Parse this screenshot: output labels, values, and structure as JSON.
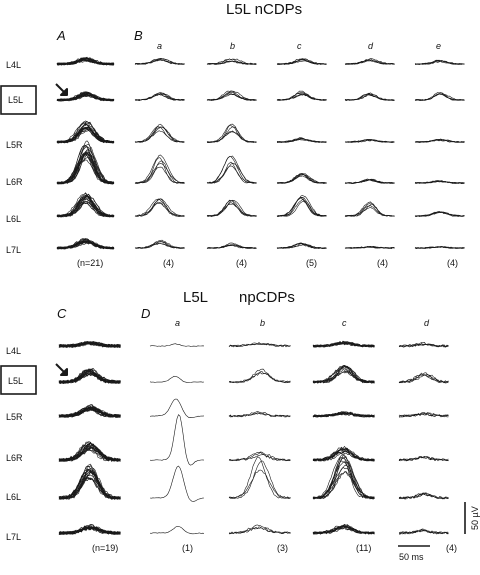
{
  "top": {
    "title": "L5L nCDPs",
    "panel_a": "A",
    "panel_b": "B",
    "sub_labels": [
      "a",
      "b",
      "c",
      "d",
      "e"
    ],
    "rows": [
      "L4L",
      "L5L",
      "L5R",
      "L6R",
      "L6L",
      "L7L"
    ],
    "highlighted_row": "L5L",
    "counts": [
      "(n=21)",
      "(4)",
      "(4)",
      "(5)",
      "(4)",
      "(4)"
    ]
  },
  "bottom": {
    "title_left": "L5L",
    "title_right": "npCDPs",
    "panel_c": "C",
    "panel_d": "D",
    "sub_labels": [
      "a",
      "b",
      "c",
      "d"
    ],
    "rows": [
      "L4L",
      "L5L",
      "L5R",
      "L6R",
      "L6L",
      "L7L"
    ],
    "highlighted_row": "L5L",
    "counts": [
      "(n=19)",
      "(1)",
      "(3)",
      "(11)",
      "(4)"
    ]
  },
  "scale_bar": {
    "time": "50 ms",
    "amplitude": "50 µV"
  },
  "colors": {
    "ink": "#1a1a1a",
    "background": "#ffffff"
  },
  "icons": [
    "arrow-icon"
  ]
}
